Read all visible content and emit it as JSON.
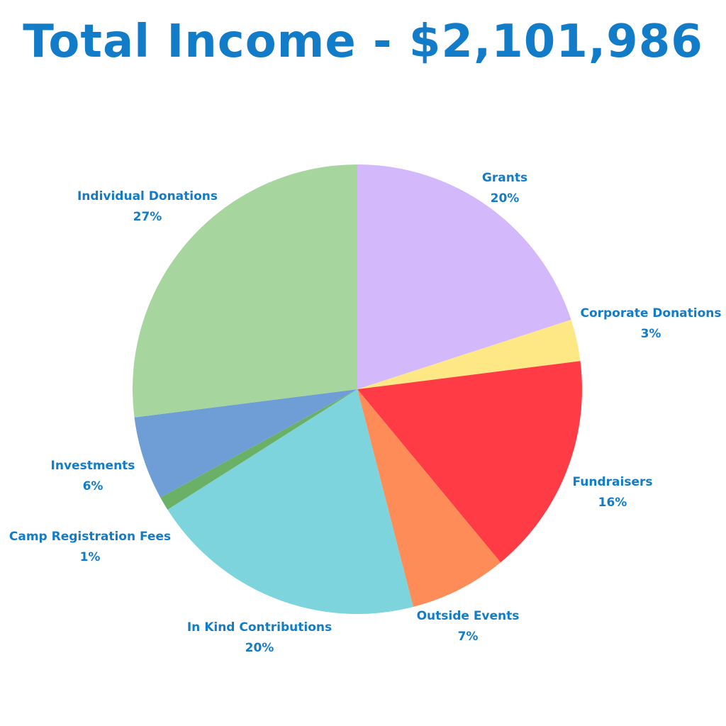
{
  "chart_data": {
    "type": "pie",
    "title": "Total Income -  $2,101,986",
    "start_angle_deg": 0,
    "direction": "clockwise",
    "legend": "none",
    "label_color": "#137cc8",
    "slices": [
      {
        "label": "Grants",
        "value": 20,
        "display": "20%",
        "color": "#d4b8fc"
      },
      {
        "label": "Corporate Donations",
        "value": 3,
        "display": "3%",
        "color": "#fde885"
      },
      {
        "label": "Fundraisers",
        "value": 16,
        "display": "16%",
        "color": "#ff3b46"
      },
      {
        "label": "Outside Events",
        "value": 7,
        "display": "7%",
        "color": "#fe8c59"
      },
      {
        "label": "In Kind Contributions",
        "value": 20,
        "display": "20%",
        "color": "#7dd4dd"
      },
      {
        "label": "Camp Registration Fees",
        "value": 1,
        "display": "1%",
        "color": "#6ab167"
      },
      {
        "label": "Investments",
        "value": 6,
        "display": "6%",
        "color": "#6f9ed6"
      },
      {
        "label": "Individual Donations",
        "value": 27,
        "display": "27%",
        "color": "#a7d59e"
      }
    ]
  }
}
